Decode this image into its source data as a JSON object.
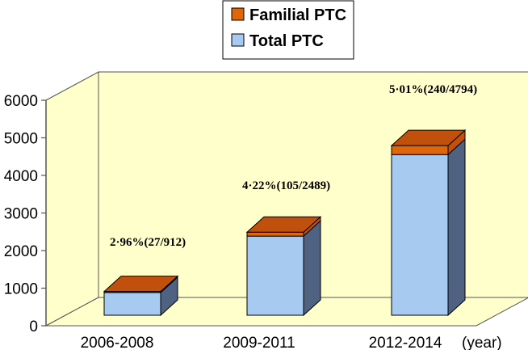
{
  "chart_data": {
    "type": "bar",
    "stacked": true,
    "three_d": true,
    "categories": [
      "2006-2008",
      "2009-2011",
      "2012-2014"
    ],
    "x_unit_label": "(year)",
    "ylim": [
      0,
      6000
    ],
    "yticks": [
      0,
      1000,
      2000,
      3000,
      4000,
      5000,
      6000
    ],
    "legend_position": "top-center",
    "series": [
      {
        "name": "Total PTC",
        "values": [
          885,
          2384,
          4554
        ],
        "color": "#a6caf0",
        "side_color": "#4f6282"
      },
      {
        "name": "Familial PTC",
        "values": [
          27,
          105,
          240
        ],
        "color": "#e0660a",
        "top_color": "#c0500c"
      }
    ],
    "data_labels": [
      "2·96%(27/912)",
      "4·22%(105/2489)",
      "5·01%(240/4794)"
    ],
    "plot_background": "#ffffcc"
  }
}
